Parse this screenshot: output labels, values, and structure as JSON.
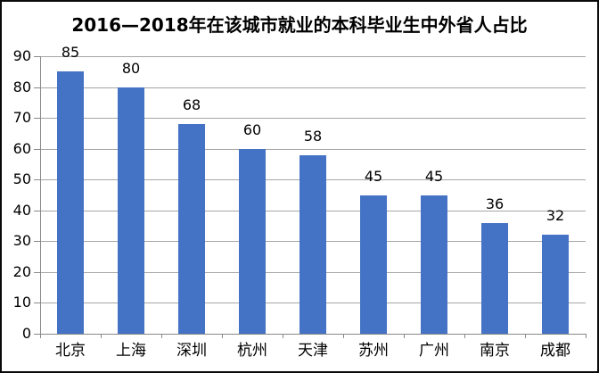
{
  "header": {
    "title": "2016—2018年在该城市就业的本科毕业生中外省人占比"
  },
  "colors": {
    "bar": "#4472C4",
    "gridline": "#A6A6A6",
    "axis": "#898989",
    "text": "#000000",
    "frame_border": "#0a0a0a",
    "background": "#ffffff"
  },
  "chart_data": {
    "type": "bar",
    "title": "2016—2018年在该城市就业的本科毕业生中外省人占比",
    "categories": [
      "北京",
      "上海",
      "深圳",
      "杭州",
      "天津",
      "苏州",
      "广州",
      "南京",
      "成都"
    ],
    "values": [
      85,
      80,
      68,
      60,
      58,
      45,
      45,
      36,
      32
    ],
    "xlabel": "",
    "ylabel": "",
    "ylim": [
      0,
      90
    ],
    "yticks": [
      0,
      10,
      20,
      30,
      40,
      50,
      60,
      70,
      80,
      90
    ],
    "grid": true,
    "legend": false,
    "data_labels": true
  }
}
